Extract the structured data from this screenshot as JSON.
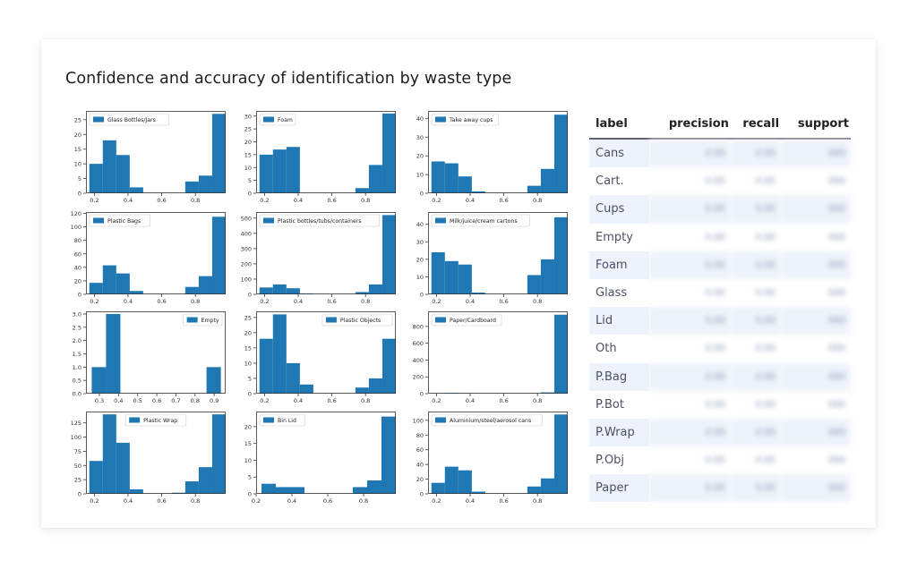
{
  "page": {
    "title": "Confidence and accuracy of identification by waste type"
  },
  "colors": {
    "bar": "#1f77b4",
    "axis": "#333333",
    "header_rule": "#5f6470",
    "row_stripe": "#eef2fa"
  },
  "chart_data": [
    {
      "type": "bar",
      "legend": "Glass Bottles/Jars",
      "legend_loc": "upper left",
      "xlim": [
        0.15,
        0.98
      ],
      "ylim": [
        0,
        28
      ],
      "xticks": [
        0.2,
        0.4,
        0.6,
        0.8
      ],
      "xtick_labels": [
        "0.2",
        "0.4",
        "0.6",
        "0.8"
      ],
      "yticks": [
        0,
        5,
        10,
        15,
        20,
        25
      ],
      "ytick_labels": [
        "0",
        "5",
        "10",
        "15",
        "20",
        "25"
      ],
      "bins": [
        [
          0.17,
          0.25,
          10
        ],
        [
          0.25,
          0.33,
          18
        ],
        [
          0.33,
          0.41,
          13
        ],
        [
          0.41,
          0.49,
          2
        ],
        [
          0.74,
          0.82,
          4
        ],
        [
          0.82,
          0.9,
          6
        ],
        [
          0.9,
          0.98,
          27
        ]
      ]
    },
    {
      "type": "bar",
      "legend": "Foam",
      "legend_loc": "upper left",
      "xlim": [
        0.15,
        0.98
      ],
      "ylim": [
        0,
        32
      ],
      "xticks": [
        0.2,
        0.4,
        0.6,
        0.8
      ],
      "xtick_labels": [
        "0.2",
        "0.4",
        "0.6",
        "0.8"
      ],
      "yticks": [
        0,
        5,
        10,
        15,
        20,
        25,
        30
      ],
      "ytick_labels": [
        "0",
        "5",
        "10",
        "15",
        "20",
        "25",
        "30"
      ],
      "bins": [
        [
          0.17,
          0.25,
          15
        ],
        [
          0.25,
          0.33,
          17
        ],
        [
          0.33,
          0.41,
          18
        ],
        [
          0.74,
          0.82,
          2
        ],
        [
          0.82,
          0.9,
          11
        ],
        [
          0.9,
          0.98,
          31
        ]
      ]
    },
    {
      "type": "bar",
      "legend": "Take away cups",
      "legend_loc": "upper left",
      "xlim": [
        0.15,
        0.98
      ],
      "ylim": [
        0,
        44
      ],
      "xticks": [
        0.2,
        0.4,
        0.6,
        0.8
      ],
      "xtick_labels": [
        "0.2",
        "0.4",
        "0.6",
        "0.8"
      ],
      "yticks": [
        0,
        10,
        20,
        30,
        40
      ],
      "ytick_labels": [
        "0",
        "10",
        "20",
        "30",
        "40"
      ],
      "bins": [
        [
          0.17,
          0.25,
          17
        ],
        [
          0.25,
          0.33,
          16
        ],
        [
          0.33,
          0.41,
          9
        ],
        [
          0.41,
          0.49,
          1
        ],
        [
          0.74,
          0.82,
          4
        ],
        [
          0.82,
          0.9,
          13
        ],
        [
          0.9,
          0.98,
          42
        ]
      ]
    },
    {
      "type": "bar",
      "legend": "Plastic Bags",
      "legend_loc": "upper left",
      "xlim": [
        0.15,
        0.98
      ],
      "ylim": [
        0,
        122
      ],
      "xticks": [
        0.2,
        0.4,
        0.6,
        0.8
      ],
      "xtick_labels": [
        "0.2",
        "0.4",
        "0.6",
        "0.8"
      ],
      "yticks": [
        0,
        20,
        40,
        60,
        80,
        100,
        120
      ],
      "ytick_labels": [
        "0",
        "20",
        "40",
        "60",
        "80",
        "100",
        "120"
      ],
      "bins": [
        [
          0.17,
          0.25,
          17
        ],
        [
          0.25,
          0.33,
          43
        ],
        [
          0.33,
          0.41,
          31
        ],
        [
          0.41,
          0.49,
          5
        ],
        [
          0.74,
          0.82,
          11
        ],
        [
          0.82,
          0.9,
          27
        ],
        [
          0.9,
          0.98,
          115
        ]
      ]
    },
    {
      "type": "bar",
      "legend": "Plastic bottles/tubs/containers",
      "legend_loc": "upper left",
      "xlim": [
        0.15,
        0.98
      ],
      "ylim": [
        0,
        540
      ],
      "xticks": [
        0.2,
        0.4,
        0.6,
        0.8
      ],
      "xtick_labels": [
        "0.2",
        "0.4",
        "0.6",
        "0.8"
      ],
      "yticks": [
        0,
        100,
        200,
        300,
        400,
        500
      ],
      "ytick_labels": [
        "0",
        "100",
        "200",
        "300",
        "400",
        "500"
      ],
      "bins": [
        [
          0.17,
          0.25,
          45
        ],
        [
          0.25,
          0.33,
          65
        ],
        [
          0.33,
          0.41,
          40
        ],
        [
          0.41,
          0.49,
          5
        ],
        [
          0.74,
          0.82,
          15
        ],
        [
          0.82,
          0.9,
          65
        ],
        [
          0.9,
          0.98,
          520
        ]
      ]
    },
    {
      "type": "bar",
      "legend": "Milk/juice/cream cartons",
      "legend_loc": "upper left",
      "xlim": [
        0.15,
        0.98
      ],
      "ylim": [
        0,
        47
      ],
      "xticks": [
        0.2,
        0.4,
        0.6,
        0.8
      ],
      "xtick_labels": [
        "0.2",
        "0.4",
        "0.6",
        "0.8"
      ],
      "yticks": [
        0,
        10,
        20,
        30,
        40
      ],
      "ytick_labels": [
        "0",
        "10",
        "20",
        "30",
        "40"
      ],
      "bins": [
        [
          0.17,
          0.25,
          24
        ],
        [
          0.25,
          0.33,
          19
        ],
        [
          0.33,
          0.41,
          17
        ],
        [
          0.41,
          0.49,
          1
        ],
        [
          0.74,
          0.82,
          11
        ],
        [
          0.82,
          0.9,
          20
        ],
        [
          0.9,
          0.98,
          44
        ]
      ]
    },
    {
      "type": "bar",
      "legend": "Empty",
      "legend_loc": "upper right",
      "xlim": [
        0.23,
        0.96
      ],
      "ylim": [
        0,
        3.1
      ],
      "xticks": [
        0.3,
        0.4,
        0.5,
        0.6,
        0.7,
        0.8,
        0.9
      ],
      "xtick_labels": [
        "0.3",
        "0.4",
        "0.5",
        "0.6",
        "0.7",
        "0.8",
        "0.9"
      ],
      "yticks": [
        0,
        0.5,
        1,
        1.5,
        2,
        2.5,
        3
      ],
      "ytick_labels": [
        "0.0",
        "0.5",
        "1.0",
        "1.5",
        "2.0",
        "2.5",
        "3.0"
      ],
      "bins": [
        [
          0.26,
          0.335,
          1
        ],
        [
          0.335,
          0.41,
          3
        ],
        [
          0.86,
          0.935,
          1
        ]
      ]
    },
    {
      "type": "bar",
      "legend": "Plastic Objects",
      "legend_loc": "upper right",
      "xlim": [
        0.15,
        0.98
      ],
      "ylim": [
        0,
        27
      ],
      "xticks": [
        0.2,
        0.4,
        0.6,
        0.8
      ],
      "xtick_labels": [
        "0.2",
        "0.4",
        "0.6",
        "0.8"
      ],
      "yticks": [
        0,
        5,
        10,
        15,
        20,
        25
      ],
      "ytick_labels": [
        "0",
        "5",
        "10",
        "15",
        "20",
        "25"
      ],
      "bins": [
        [
          0.17,
          0.25,
          18
        ],
        [
          0.25,
          0.33,
          26
        ],
        [
          0.33,
          0.41,
          10
        ],
        [
          0.41,
          0.49,
          3
        ],
        [
          0.74,
          0.82,
          2
        ],
        [
          0.82,
          0.9,
          5
        ],
        [
          0.9,
          0.98,
          18
        ]
      ]
    },
    {
      "type": "bar",
      "legend": "Paper/Cardboard",
      "legend_loc": "upper left",
      "xlim": [
        0.15,
        0.98
      ],
      "ylim": [
        0,
        980
      ],
      "xticks": [
        0.2,
        0.4,
        0.6,
        0.8
      ],
      "xtick_labels": [
        "0.2",
        "0.4",
        "0.6",
        "0.8"
      ],
      "yticks": [
        0,
        200,
        400,
        600,
        800
      ],
      "ytick_labels": [
        "0",
        "200",
        "400",
        "600",
        "800"
      ],
      "bins": [
        [
          0.17,
          0.25,
          3
        ],
        [
          0.25,
          0.33,
          8
        ],
        [
          0.33,
          0.41,
          4
        ],
        [
          0.82,
          0.9,
          15
        ],
        [
          0.9,
          0.98,
          940
        ]
      ]
    },
    {
      "type": "bar",
      "legend": "Plastic Wrap",
      "legend_loc": "upper center",
      "xlim": [
        0.15,
        0.98
      ],
      "ylim": [
        0,
        145
      ],
      "xticks": [
        0.2,
        0.4,
        0.6,
        0.8
      ],
      "xtick_labels": [
        "0.2",
        "0.4",
        "0.6",
        "0.8"
      ],
      "yticks": [
        0,
        25,
        50,
        75,
        100,
        125
      ],
      "ytick_labels": [
        "0",
        "25",
        "50",
        "75",
        "100",
        "125"
      ],
      "bins": [
        [
          0.17,
          0.25,
          58
        ],
        [
          0.25,
          0.33,
          140
        ],
        [
          0.33,
          0.41,
          90
        ],
        [
          0.41,
          0.49,
          8
        ],
        [
          0.66,
          0.74,
          2
        ],
        [
          0.74,
          0.82,
          22
        ],
        [
          0.82,
          0.9,
          47
        ],
        [
          0.9,
          0.98,
          140
        ]
      ]
    },
    {
      "type": "bar",
      "legend": "Bin Lid",
      "legend_loc": "upper left",
      "xlim": [
        0.2,
        0.98
      ],
      "ylim": [
        0,
        24.5
      ],
      "xticks": [
        0.2,
        0.4,
        0.6,
        0.8
      ],
      "xtick_labels": [
        "0.2",
        "0.4",
        "0.6",
        "0.8"
      ],
      "yticks": [
        0,
        5,
        10,
        15,
        20
      ],
      "ytick_labels": [
        "0",
        "5",
        "10",
        "15",
        "20"
      ],
      "bins": [
        [
          0.23,
          0.31,
          3
        ],
        [
          0.31,
          0.39,
          2
        ],
        [
          0.39,
          0.47,
          2
        ],
        [
          0.74,
          0.82,
          2
        ],
        [
          0.82,
          0.9,
          4
        ],
        [
          0.9,
          0.98,
          23
        ]
      ]
    },
    {
      "type": "bar",
      "legend": "Aluminium/steel/aerosol cans",
      "legend_loc": "upper left",
      "xlim": [
        0.15,
        0.98
      ],
      "ylim": [
        0,
        112
      ],
      "xticks": [
        0.2,
        0.4,
        0.6,
        0.8
      ],
      "xtick_labels": [
        "0.2",
        "0.4",
        "0.6",
        "0.8"
      ],
      "yticks": [
        0,
        20,
        40,
        60,
        80,
        100
      ],
      "ytick_labels": [
        "0",
        "20",
        "40",
        "60",
        "80",
        "100"
      ],
      "bins": [
        [
          0.17,
          0.25,
          15
        ],
        [
          0.25,
          0.33,
          37
        ],
        [
          0.33,
          0.41,
          32
        ],
        [
          0.41,
          0.49,
          3
        ],
        [
          0.74,
          0.82,
          10
        ],
        [
          0.82,
          0.9,
          21
        ],
        [
          0.9,
          0.98,
          108
        ]
      ]
    }
  ],
  "table": {
    "headers": [
      "label",
      "precision",
      "recall",
      "support"
    ],
    "rows": [
      {
        "label": "Cans"
      },
      {
        "label": "Cart."
      },
      {
        "label": "Cups"
      },
      {
        "label": "Empty"
      },
      {
        "label": "Foam"
      },
      {
        "label": "Glass"
      },
      {
        "label": "Lid"
      },
      {
        "label": "Oth"
      },
      {
        "label": "P.Bag"
      },
      {
        "label": "P.Bot"
      },
      {
        "label": "P.Wrap"
      },
      {
        "label": "P.Obj"
      },
      {
        "label": "Paper"
      }
    ]
  }
}
